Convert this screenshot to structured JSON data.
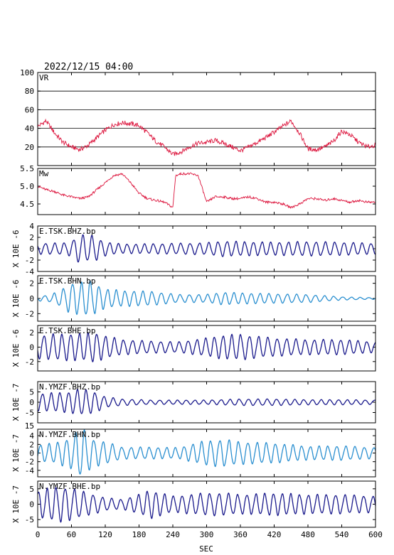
{
  "header": {
    "datetime": "2022/12/15 04:00"
  },
  "xaxis": {
    "label": "SEC",
    "ticks": [
      0,
      60,
      120,
      180,
      240,
      300,
      360,
      420,
      480,
      540,
      600
    ],
    "range": [
      0,
      600
    ]
  },
  "colors": {
    "vr_mw": "#dc143c",
    "dark_blue": "#1a1a8c",
    "light_blue": "#2a8fd0"
  },
  "chart_data": [
    {
      "type": "line",
      "name": "VR",
      "ylim": [
        0,
        100
      ],
      "yticks": [
        20,
        40,
        60,
        80,
        100
      ],
      "grid": true,
      "x": [
        0,
        15,
        30,
        45,
        60,
        75,
        90,
        105,
        120,
        135,
        150,
        165,
        180,
        195,
        210,
        225,
        240,
        255,
        270,
        285,
        300,
        315,
        330,
        345,
        360,
        375,
        390,
        405,
        420,
        435,
        450,
        465,
        480,
        495,
        510,
        525,
        540,
        555,
        570,
        585,
        600
      ],
      "values": [
        42,
        48,
        35,
        25,
        20,
        17,
        22,
        30,
        38,
        44,
        46,
        45,
        43,
        35,
        26,
        20,
        12,
        15,
        20,
        24,
        25,
        27,
        24,
        20,
        16,
        20,
        25,
        30,
        36,
        42,
        48,
        35,
        18,
        17,
        20,
        26,
        37,
        33,
        25,
        20,
        22
      ]
    },
    {
      "type": "line",
      "name": "Mw",
      "ylim": [
        4.2,
        5.5
      ],
      "yticks": [
        4.5,
        5.0,
        5.5
      ],
      "ytick_labels": [
        "4.5",
        "5.0",
        "5.5"
      ],
      "x": [
        0,
        15,
        30,
        45,
        60,
        75,
        90,
        105,
        120,
        135,
        150,
        165,
        180,
        195,
        210,
        225,
        240,
        245,
        255,
        270,
        285,
        300,
        315,
        330,
        345,
        360,
        375,
        390,
        405,
        420,
        435,
        450,
        465,
        480,
        495,
        510,
        525,
        540,
        555,
        570,
        585,
        600
      ],
      "values": [
        5.0,
        4.9,
        4.85,
        4.75,
        4.7,
        4.65,
        4.7,
        4.9,
        5.1,
        5.3,
        5.35,
        5.1,
        4.8,
        4.65,
        4.6,
        4.55,
        4.4,
        5.3,
        5.35,
        5.35,
        5.3,
        4.55,
        4.7,
        4.7,
        4.65,
        4.65,
        4.7,
        4.65,
        4.55,
        4.55,
        4.5,
        4.4,
        4.5,
        4.65,
        4.65,
        4.6,
        4.65,
        4.6,
        4.55,
        4.6,
        4.55,
        4.55
      ]
    },
    {
      "type": "line",
      "name": "E.TSK.BHZ.bp",
      "ylabel": "X 10E -6",
      "ylim": [
        -4,
        4
      ],
      "yticks": [
        -4,
        -2,
        0,
        2,
        4
      ],
      "color": "dark_blue",
      "envelope_x": [
        0,
        50,
        60,
        75,
        90,
        100,
        110,
        120,
        130,
        150,
        180,
        240,
        300,
        330,
        360,
        420,
        480,
        540,
        600
      ],
      "envelope": [
        0.9,
        1.0,
        1.3,
        2.5,
        2.1,
        2.3,
        1.6,
        1.2,
        1.0,
        0.8,
        0.8,
        0.9,
        1.0,
        1.3,
        1.2,
        1.1,
        1.2,
        1.1,
        0.9
      ],
      "period_sec": 16
    },
    {
      "type": "line",
      "name": "E.TSK.BHN.bp",
      "ylabel": "X 10E -6",
      "ylim": [
        -3,
        3
      ],
      "yticks": [
        -2,
        0,
        2
      ],
      "color": "light_blue",
      "envelope_x": [
        0,
        20,
        40,
        60,
        75,
        90,
        100,
        120,
        150,
        200,
        250,
        300,
        330,
        360,
        420,
        480,
        540,
        600
      ],
      "envelope": [
        0.3,
        0.4,
        1.0,
        2.0,
        2.0,
        2.3,
        2.0,
        1.2,
        1.0,
        0.9,
        0.5,
        0.5,
        0.8,
        0.7,
        0.6,
        0.5,
        0.2,
        0.1
      ],
      "period_sec": 16
    },
    {
      "type": "line",
      "name": "E.TSK.BHE.bp",
      "ylabel": "X 10E -6",
      "ylim": [
        -3.3,
        3
      ],
      "yticks": [
        -2,
        0,
        2
      ],
      "color": "dark_blue",
      "envelope_x": [
        0,
        20,
        60,
        80,
        100,
        120,
        150,
        200,
        250,
        300,
        330,
        360,
        420,
        480,
        540,
        600
      ],
      "envelope": [
        1.5,
        1.7,
        1.8,
        1.8,
        2.0,
        1.5,
        1.0,
        0.8,
        0.7,
        1.2,
        1.6,
        1.7,
        1.2,
        1.0,
        1.0,
        0.7
      ],
      "period_sec": 16
    },
    {
      "type": "line",
      "name": "N.YMZF.BHZ.bp",
      "ylabel": "X 10E -7",
      "ylim": [
        -10,
        10
      ],
      "yticks": [
        -5,
        0,
        5
      ],
      "color": "dark_blue",
      "envelope_x": [
        0,
        40,
        60,
        70,
        80,
        90,
        100,
        120,
        150,
        200,
        300,
        360,
        420,
        480,
        540,
        600
      ],
      "envelope": [
        4,
        4.5,
        5,
        6,
        6,
        5.5,
        5,
        2.5,
        1.5,
        1.0,
        1.0,
        1.5,
        1.5,
        1.2,
        1.2,
        1.0
      ],
      "period_sec": 16
    },
    {
      "type": "line",
      "name": "N.YMZF.BHN.bp",
      "ylabel": "X 10E -7",
      "ylim": [
        -5.5,
        5.5
      ],
      "yticks": [
        -4,
        -2,
        0,
        2,
        4
      ],
      "extra_tick_label": "15",
      "color": "light_blue",
      "envelope_x": [
        0,
        30,
        60,
        70,
        80,
        90,
        100,
        120,
        150,
        200,
        250,
        300,
        330,
        360,
        420,
        480,
        540,
        600
      ],
      "envelope": [
        1.8,
        2.2,
        3.5,
        5,
        5.5,
        4,
        3,
        2.5,
        1.3,
        1.3,
        1.2,
        2.8,
        3.0,
        2.5,
        2.2,
        1.5,
        1.6,
        1.2
      ],
      "period_sec": 16
    },
    {
      "type": "line",
      "name": "N.YMZF.BHE.bp",
      "ylabel": "X 10E -7",
      "ylim": [
        -7.5,
        7.5
      ],
      "yticks": [
        -5,
        0,
        5
      ],
      "color": "dark_blue",
      "envelope_x": [
        0,
        20,
        40,
        60,
        80,
        100,
        120,
        150,
        180,
        200,
        240,
        300,
        330,
        360,
        420,
        480,
        540,
        600
      ],
      "envelope": [
        4,
        5,
        5.5,
        5,
        4,
        3,
        2,
        1.5,
        3,
        4.5,
        2.5,
        3.5,
        3.5,
        3.0,
        3.5,
        3.0,
        3.0,
        2.5
      ],
      "period_sec": 16
    }
  ]
}
